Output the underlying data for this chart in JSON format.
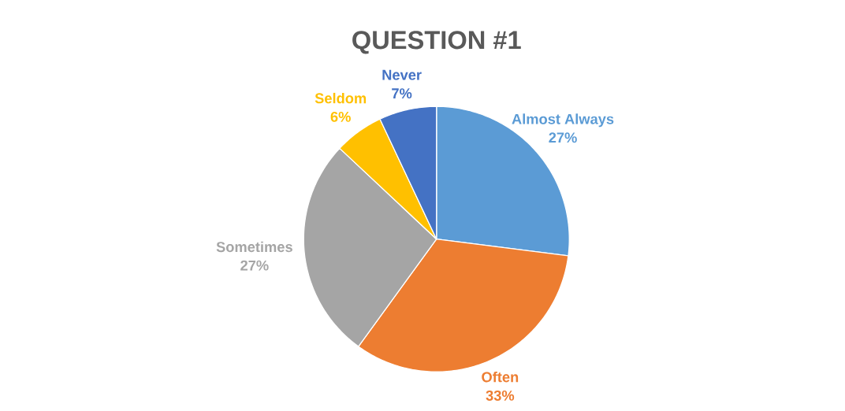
{
  "chart_data": {
    "type": "pie",
    "title": "QUESTION #1",
    "categories": [
      "Almost Always",
      "Often",
      "Sometimes",
      "Seldom",
      "Never"
    ],
    "values": [
      27,
      33,
      27,
      6,
      7
    ],
    "value_labels": [
      "27%",
      "33%",
      "27%",
      "6%",
      "7%"
    ],
    "colors": [
      "#5b9bd5",
      "#ed7d31",
      "#a5a5a5",
      "#ffc000",
      "#4472c4"
    ]
  }
}
